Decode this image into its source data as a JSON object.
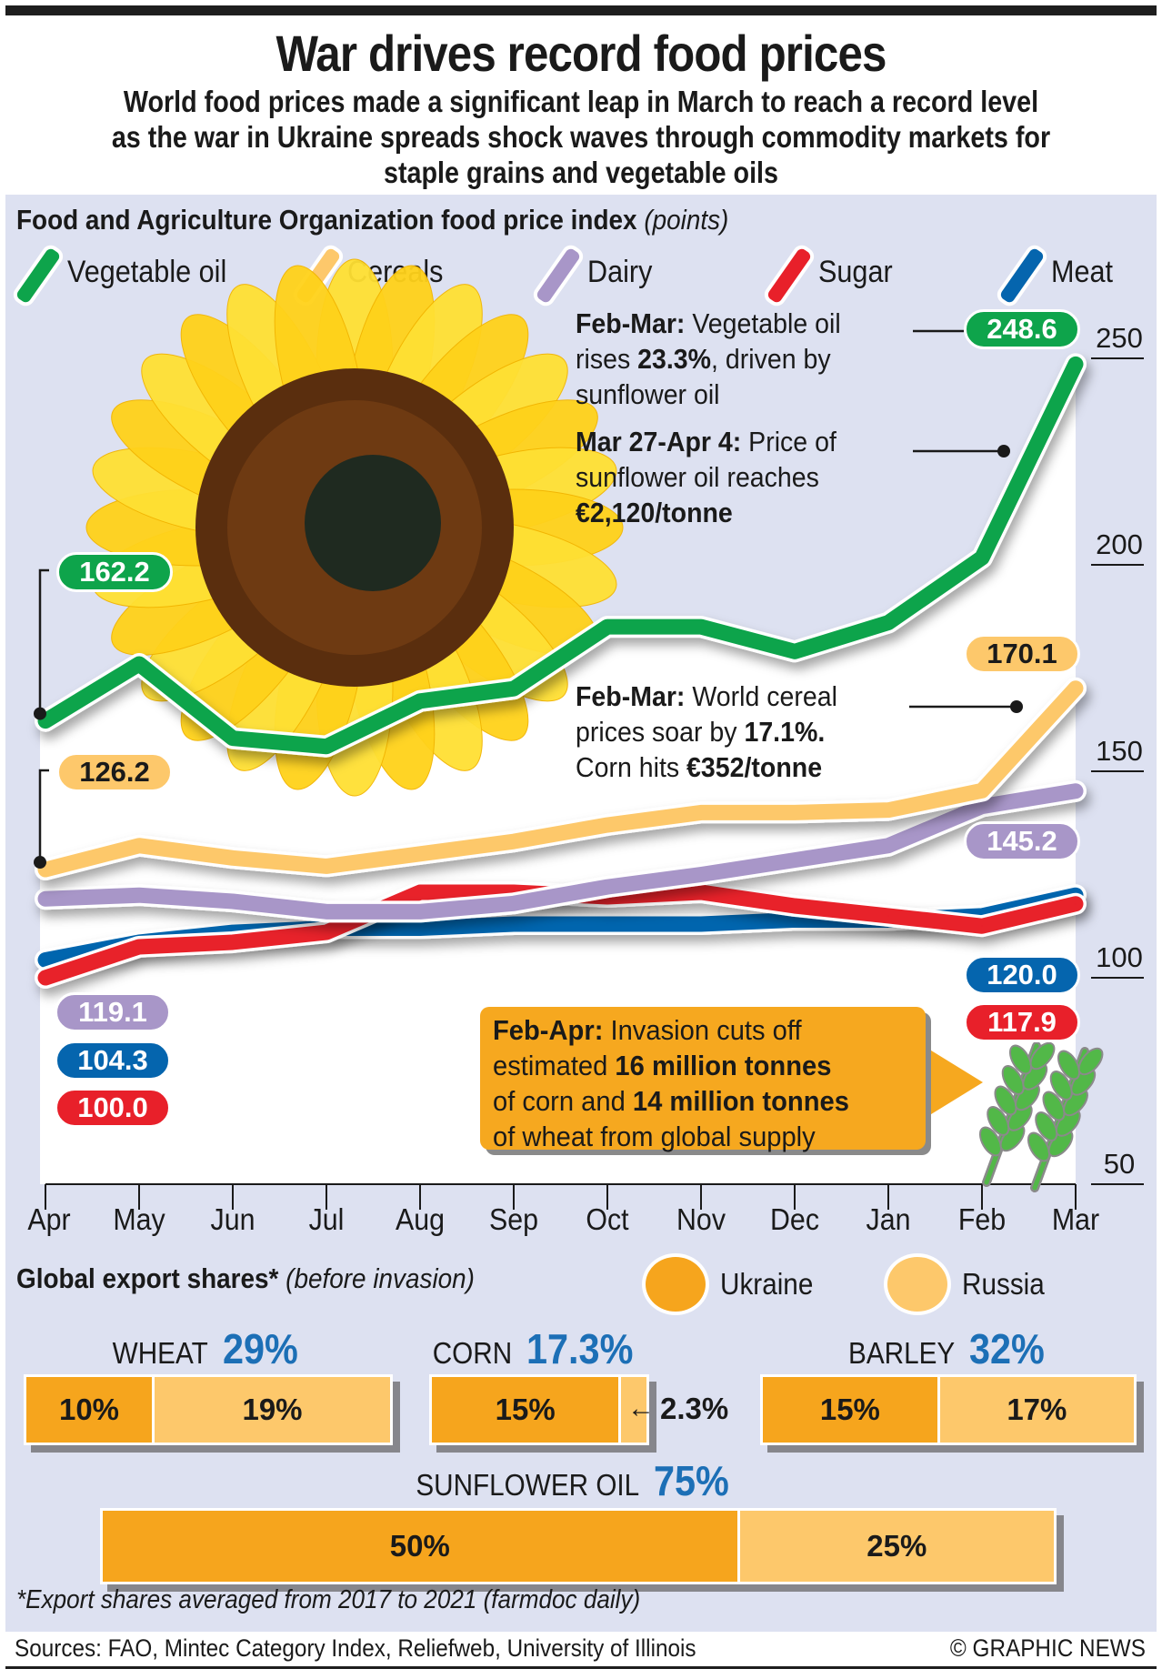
{
  "header": {
    "title": "War drives record food prices",
    "subtitle": "World food prices made a significant leap in March to reach a record level as the war in Ukraine spreads shock waves through commodity markets for staple grains and vegetable oils"
  },
  "chart_data": {
    "type": "line",
    "title": "Food and Agriculture Organization food price index",
    "unit": "(points)",
    "x": [
      "Apr",
      "May",
      "Jun",
      "Jul",
      "Aug",
      "Sep",
      "Oct",
      "Nov",
      "Dec",
      "Jan",
      "Feb",
      "Mar"
    ],
    "ylim": [
      50,
      250
    ],
    "yticks": [
      "250",
      "200",
      "150",
      "100",
      "50"
    ],
    "ytick_values": [
      250,
      200,
      150,
      100,
      50
    ],
    "legend_position": "top",
    "series": [
      {
        "name": "Vegetable oil",
        "color": "#0ea44b",
        "values": [
          162.2,
          176,
          158,
          156,
          167,
          170,
          185,
          185,
          179,
          186,
          201.7,
          248.6
        ],
        "start_label": "162.2",
        "end_label": "248.6"
      },
      {
        "name": "Cereals",
        "color": "#fdc86b",
        "values": [
          126.2,
          132,
          129,
          127,
          130,
          133,
          137,
          140,
          140,
          140.6,
          145.3,
          170.1
        ],
        "start_label": "126.2",
        "end_label": "170.1"
      },
      {
        "name": "Dairy",
        "color": "#a896c8",
        "values": [
          119.1,
          120,
          118.5,
          116,
          116,
          118,
          122,
          125,
          128.5,
          132,
          141.5,
          145.2
        ],
        "start_label": "119.1",
        "end_label": "145.2"
      },
      {
        "name": "Sugar",
        "color": "#e8202a",
        "values": [
          100.0,
          107.5,
          108.6,
          111,
          120.7,
          120.7,
          119.6,
          120.7,
          117.4,
          115,
          112.5,
          117.9
        ],
        "start_label": "100.0",
        "end_label": "117.9"
      },
      {
        "name": "Meat",
        "color": "#0565ae",
        "values": [
          104.3,
          108.6,
          111,
          112,
          112,
          113,
          113,
          113,
          114,
          114,
          115,
          120.0
        ],
        "start_label": "104.3",
        "end_label": "120.0"
      }
    ],
    "annotations": {
      "vegoil_rise": {
        "bold": "Feb-Mar:",
        "text1": " Vegetable oil",
        "text2a": "rises ",
        "text2b": "23.3%",
        "text2c": ", driven by",
        "text3": "sunflower oil"
      },
      "sunflower_price": {
        "bold": "Mar 27-Apr 4:",
        "text1": " Price of",
        "text2": "sunflower oil reaches",
        "text3": "€2,120/tonne"
      },
      "cereal_rise": {
        "bold": "Feb-Mar:",
        "text1": " World cereal",
        "text2a": "prices soar by ",
        "text2b": "17.1%.",
        "text3a": "Corn hits ",
        "text3b": "€352/tonne"
      },
      "supply_cut": {
        "bold": "Feb-Apr:",
        "text1": " Invasion cuts off",
        "text2a": "estimated ",
        "text2b": "16 million tonnes",
        "text3a": "of corn and ",
        "text3b": "14 million tonnes",
        "text4": "of wheat from global supply"
      }
    }
  },
  "exports": {
    "heading": "Global export shares*",
    "subheading": "(before invasion)",
    "legend": [
      {
        "label": "Ukraine",
        "color": "#f6a51d"
      },
      {
        "label": "Russia",
        "color": "#fdc86b"
      }
    ],
    "items": [
      {
        "name": "WHEAT",
        "total": "29%",
        "ukraine": 10,
        "russia": 19,
        "ukraine_label": "10%",
        "russia_label": "19%"
      },
      {
        "name": "CORN",
        "total": "17.3%",
        "ukraine": 15,
        "russia": 2.3,
        "ukraine_label": "15%",
        "russia_label": "2.3%"
      },
      {
        "name": "BARLEY",
        "total": "32%",
        "ukraine": 15,
        "russia": 17,
        "ukraine_label": "15%",
        "russia_label": "17%"
      },
      {
        "name": "SUNFLOWER OIL",
        "total": "75%",
        "ukraine": 50,
        "russia": 25,
        "ukraine_label": "50%",
        "russia_label": "25%"
      }
    ],
    "footnote": "*Export shares averaged from 2017 to 2021 (farmdoc daily)"
  },
  "footer": {
    "sources": "Sources: FAO, Mintec Category Index, Reliefweb, University of Illinois",
    "credit": "© GRAPHIC NEWS"
  }
}
